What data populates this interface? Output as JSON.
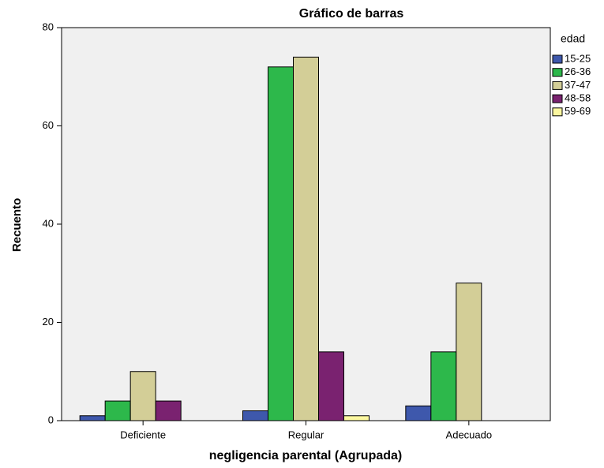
{
  "chart_data": {
    "type": "bar",
    "title": "Gráfico de barras",
    "x_label": "negligencia parental (Agrupada)",
    "y_label": "Recuento",
    "legend_title": "edad",
    "legend": "right",
    "categories": [
      "Deficiente",
      "Regular",
      "Adecuado"
    ],
    "series": [
      {
        "name": "15-25",
        "color": "#3e58ac",
        "values": [
          1,
          2,
          3
        ]
      },
      {
        "name": "26-36",
        "color": "#2db84b",
        "values": [
          4,
          72,
          14
        ]
      },
      {
        "name": "37-47",
        "color": "#d3ce97",
        "values": [
          10,
          74,
          28
        ]
      },
      {
        "name": "48-58",
        "color": "#7a2270",
        "values": [
          4,
          14,
          0
        ]
      },
      {
        "name": "59-69",
        "color": "#fbf79f",
        "values": [
          0,
          1,
          0
        ]
      }
    ],
    "ylim": [
      0,
      80
    ],
    "yticks": [
      0,
      20,
      40,
      60,
      80
    ],
    "grid": false
  }
}
